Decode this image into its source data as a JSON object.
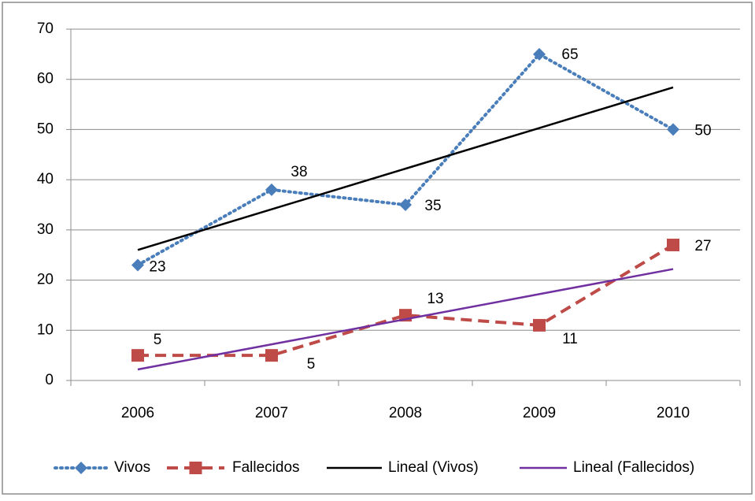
{
  "chart_data": {
    "type": "line",
    "categories": [
      "2006",
      "2007",
      "2008",
      "2009",
      "2010"
    ],
    "series": [
      {
        "name": "Vivos",
        "color": "#4a7ebb",
        "style": "dotted",
        "marker": "diamond",
        "values": [
          23,
          38,
          35,
          65,
          50
        ],
        "data_labels": true
      },
      {
        "name": "Fallecidos",
        "color": "#be4b48",
        "style": "dashed",
        "marker": "square",
        "values": [
          5,
          5,
          13,
          11,
          27
        ],
        "data_labels": true
      },
      {
        "name": "Lineal (Vivos)",
        "color": "#000000",
        "style": "solid",
        "marker": "none",
        "values": [
          26,
          34.1,
          42.2,
          50.3,
          58.4
        ],
        "data_labels": false
      },
      {
        "name": "Lineal (Fallecidos)",
        "color": "#7030a0",
        "style": "solid",
        "marker": "none",
        "values": [
          2.2,
          7.2,
          12.2,
          17.2,
          22.2
        ],
        "data_labels": false
      }
    ],
    "ylim": [
      0,
      70
    ],
    "yticks": [
      0,
      10,
      20,
      30,
      40,
      50,
      60,
      70
    ],
    "grid": true,
    "legend": "bottom"
  }
}
